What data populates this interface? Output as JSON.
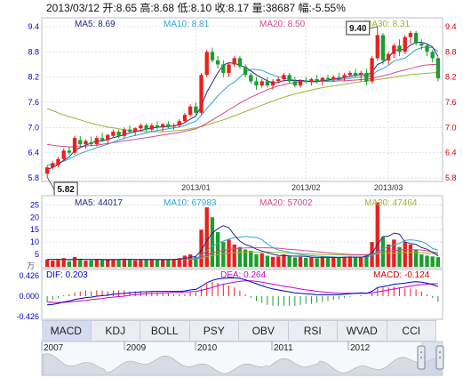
{
  "header": {
    "text": "2013/03/12 开:8.65 高:8.68 低:8.10 收:8.17 量:38687 幅:-5.55%"
  },
  "colors": {
    "up": "#e8211c",
    "down": "#1a9e2c",
    "ma5": "#1f2a8c",
    "ma10": "#2aa7d4",
    "ma20": "#d24a92",
    "ma30": "#9ab52e",
    "axis_left": "#0000cc",
    "axis_right": "#cc0000",
    "grid": "#e0e0e0"
  },
  "chart_data": [
    {
      "type": "candlestick",
      "name": "price",
      "ma_legend": [
        {
          "label": "MA5: 8.69",
          "color": "#1f2a8c"
        },
        {
          "label": "MA10: 8.81",
          "color": "#2aa7d4"
        },
        {
          "label": "MA20: 8.50",
          "color": "#d24a92"
        },
        {
          "label": "MA30: 8.31",
          "color": "#9ab52e"
        }
      ],
      "y_ticks": [
        "9.4",
        "8.8",
        "8.2",
        "7.6",
        "7.0",
        "6.4",
        "5.8"
      ],
      "ylim": [
        5.8,
        9.4
      ],
      "x_ticks": [
        {
          "label": "2013/01",
          "index": 27
        },
        {
          "label": "2013/02",
          "index": 47
        },
        {
          "label": "2013/03",
          "index": 62
        }
      ],
      "annotations": [
        {
          "label": "9.40",
          "kind": "high"
        },
        {
          "label": "5.82",
          "kind": "low"
        }
      ],
      "ohlc": [
        [
          5.9,
          6.1,
          5.82,
          6.05
        ],
        [
          6.05,
          6.2,
          6.0,
          6.15
        ],
        [
          6.1,
          6.3,
          6.05,
          6.25
        ],
        [
          6.25,
          6.5,
          6.2,
          6.45
        ],
        [
          6.45,
          6.55,
          6.35,
          6.4
        ],
        [
          6.4,
          6.8,
          6.35,
          6.75
        ],
        [
          6.7,
          6.8,
          6.55,
          6.6
        ],
        [
          6.6,
          6.72,
          6.5,
          6.68
        ],
        [
          6.65,
          6.78,
          6.55,
          6.6
        ],
        [
          6.6,
          6.8,
          6.55,
          6.75
        ],
        [
          6.75,
          6.88,
          6.65,
          6.7
        ],
        [
          6.7,
          6.85,
          6.6,
          6.82
        ],
        [
          6.8,
          6.95,
          6.75,
          6.9
        ],
        [
          6.9,
          6.95,
          6.75,
          6.8
        ],
        [
          6.8,
          7.0,
          6.75,
          6.95
        ],
        [
          6.95,
          7.05,
          6.85,
          6.9
        ],
        [
          6.9,
          7.0,
          6.8,
          6.98
        ],
        [
          6.98,
          7.1,
          6.9,
          7.05
        ],
        [
          7.05,
          7.1,
          6.9,
          6.95
        ],
        [
          6.95,
          7.1,
          6.9,
          7.05
        ],
        [
          7.05,
          7.15,
          6.95,
          7.0
        ],
        [
          7.0,
          7.1,
          6.9,
          7.08
        ],
        [
          7.08,
          7.15,
          6.98,
          7.02
        ],
        [
          7.02,
          7.1,
          6.95,
          7.05
        ],
        [
          7.05,
          7.2,
          7.0,
          7.15
        ],
        [
          7.15,
          7.35,
          7.1,
          7.3
        ],
        [
          7.3,
          7.55,
          7.25,
          7.5
        ],
        [
          7.5,
          7.6,
          7.3,
          7.35
        ],
        [
          7.35,
          8.3,
          7.3,
          8.25
        ],
        [
          8.25,
          8.85,
          8.2,
          8.8
        ],
        [
          8.8,
          8.9,
          8.55,
          8.6
        ],
        [
          8.6,
          8.7,
          8.4,
          8.5
        ],
        [
          8.5,
          8.6,
          8.2,
          8.3
        ],
        [
          8.3,
          8.55,
          8.2,
          8.5
        ],
        [
          8.5,
          8.7,
          8.45,
          8.65
        ],
        [
          8.65,
          8.7,
          8.4,
          8.45
        ],
        [
          8.45,
          8.5,
          8.2,
          8.25
        ],
        [
          8.25,
          8.3,
          8.05,
          8.1
        ],
        [
          8.1,
          8.2,
          7.9,
          8.0
        ],
        [
          8.0,
          8.15,
          7.95,
          8.1
        ],
        [
          8.1,
          8.2,
          7.95,
          8.0
        ],
        [
          8.0,
          8.15,
          7.9,
          8.1
        ],
        [
          8.1,
          8.2,
          8.05,
          8.15
        ],
        [
          8.15,
          8.3,
          8.1,
          8.25
        ],
        [
          8.25,
          8.3,
          8.05,
          8.1
        ],
        [
          8.1,
          8.2,
          7.95,
          8.0
        ],
        [
          8.0,
          8.15,
          7.95,
          8.12
        ],
        [
          8.12,
          8.2,
          8.05,
          8.08
        ],
        [
          8.08,
          8.18,
          8.0,
          8.15
        ],
        [
          8.15,
          8.25,
          8.05,
          8.1
        ],
        [
          8.1,
          8.2,
          8.0,
          8.18
        ],
        [
          8.18,
          8.25,
          8.1,
          8.15
        ],
        [
          8.15,
          8.25,
          8.08,
          8.2
        ],
        [
          8.2,
          8.3,
          8.12,
          8.18
        ],
        [
          8.18,
          8.3,
          8.1,
          8.25
        ],
        [
          8.25,
          8.35,
          8.2,
          8.3
        ],
        [
          8.3,
          8.4,
          8.2,
          8.25
        ],
        [
          8.25,
          8.35,
          8.1,
          8.3
        ],
        [
          8.3,
          8.4,
          8.0,
          8.1
        ],
        [
          8.1,
          8.7,
          8.05,
          8.65
        ],
        [
          8.65,
          9.4,
          8.6,
          9.2
        ],
        [
          9.2,
          9.25,
          8.5,
          8.6
        ],
        [
          8.6,
          8.8,
          8.5,
          8.75
        ],
        [
          8.75,
          9.0,
          8.65,
          8.95
        ],
        [
          8.95,
          9.1,
          8.7,
          8.8
        ],
        [
          8.8,
          9.2,
          8.75,
          9.15
        ],
        [
          9.15,
          9.3,
          9.0,
          9.25
        ],
        [
          9.25,
          9.3,
          8.95,
          9.0
        ],
        [
          9.0,
          9.1,
          8.85,
          8.95
        ],
        [
          8.95,
          9.0,
          8.7,
          8.8
        ],
        [
          8.8,
          8.85,
          8.55,
          8.65
        ],
        [
          8.65,
          8.68,
          8.1,
          8.17
        ]
      ],
      "ma5": [
        6.0,
        6.05,
        6.12,
        6.22,
        6.3,
        6.45,
        6.52,
        6.58,
        6.63,
        6.68,
        6.68,
        6.71,
        6.76,
        6.79,
        6.83,
        6.87,
        6.9,
        6.93,
        6.96,
        6.99,
        7.0,
        7.02,
        7.02,
        7.04,
        7.06,
        7.12,
        7.2,
        7.27,
        7.51,
        7.84,
        8.07,
        8.3,
        8.49,
        8.54,
        8.53,
        8.48,
        8.43,
        8.35,
        8.25,
        8.18,
        8.11,
        8.06,
        8.07,
        8.12,
        8.12,
        8.12,
        8.12,
        8.11,
        8.09,
        8.09,
        8.12,
        8.13,
        8.16,
        8.16,
        8.19,
        8.22,
        8.24,
        8.26,
        8.24,
        8.32,
        8.5,
        8.56,
        8.66,
        8.83,
        8.86,
        8.85,
        8.96,
        9.03,
        9.03,
        8.99,
        8.92,
        8.69
      ],
      "ma10": [
        6.1,
        6.12,
        6.15,
        6.2,
        6.25,
        6.32,
        6.38,
        6.43,
        6.47,
        6.52,
        6.56,
        6.6,
        6.65,
        6.7,
        6.74,
        6.78,
        6.81,
        6.84,
        6.87,
        6.9,
        6.93,
        6.95,
        6.97,
        6.99,
        7.01,
        7.05,
        7.1,
        7.15,
        7.28,
        7.45,
        7.6,
        7.75,
        7.88,
        8.0,
        8.08,
        8.2,
        8.32,
        8.39,
        8.38,
        8.36,
        8.3,
        8.25,
        8.21,
        8.18,
        8.15,
        8.12,
        8.1,
        8.1,
        8.1,
        8.1,
        8.11,
        8.12,
        8.13,
        8.14,
        8.15,
        8.17,
        8.19,
        8.21,
        8.2,
        8.25,
        8.35,
        8.4,
        8.48,
        8.58,
        8.62,
        8.65,
        8.75,
        8.85,
        8.9,
        8.92,
        8.9,
        8.81
      ],
      "ma20": [
        6.6,
        6.58,
        6.56,
        6.55,
        6.54,
        6.54,
        6.55,
        6.56,
        6.57,
        6.58,
        6.6,
        6.62,
        6.64,
        6.66,
        6.68,
        6.7,
        6.72,
        6.74,
        6.76,
        6.78,
        6.8,
        6.82,
        6.84,
        6.86,
        6.88,
        6.91,
        6.94,
        6.97,
        7.03,
        7.1,
        7.18,
        7.26,
        7.34,
        7.42,
        7.5,
        7.58,
        7.65,
        7.72,
        7.78,
        7.84,
        7.9,
        7.95,
        7.99,
        8.02,
        8.05,
        8.07,
        8.09,
        8.1,
        8.1,
        8.1,
        8.1,
        8.1,
        8.1,
        8.11,
        8.11,
        8.12,
        8.13,
        8.14,
        8.15,
        8.17,
        8.2,
        8.23,
        8.26,
        8.3,
        8.34,
        8.37,
        8.4,
        8.44,
        8.47,
        8.49,
        8.5,
        8.5
      ],
      "ma30": [
        7.45,
        7.4,
        7.35,
        7.3,
        7.26,
        7.22,
        7.18,
        7.14,
        7.1,
        7.07,
        7.04,
        7.01,
        6.99,
        6.97,
        6.95,
        6.93,
        6.92,
        6.91,
        6.9,
        6.9,
        6.9,
        6.9,
        6.91,
        6.92,
        6.93,
        6.95,
        6.97,
        6.99,
        7.02,
        7.06,
        7.1,
        7.14,
        7.18,
        7.23,
        7.28,
        7.33,
        7.38,
        7.43,
        7.48,
        7.53,
        7.58,
        7.63,
        7.68,
        7.72,
        7.76,
        7.8,
        7.83,
        7.86,
        7.89,
        7.92,
        7.95,
        7.97,
        7.99,
        8.01,
        8.03,
        8.05,
        8.07,
        8.09,
        8.1,
        8.12,
        8.14,
        8.16,
        8.18,
        8.2,
        8.22,
        8.24,
        8.26,
        8.27,
        8.28,
        8.29,
        8.3,
        8.31
      ]
    },
    {
      "type": "bar",
      "name": "volume",
      "ma_legend": [
        {
          "label": "MA5: 44017",
          "color": "#1f2a8c"
        },
        {
          "label": "MA10: 67983",
          "color": "#2aa7d4"
        },
        {
          "label": "MA20: 57002",
          "color": "#d24a92"
        },
        {
          "label": "MA30: 47464",
          "color": "#9ab52e"
        }
      ],
      "y_ticks": [
        "25",
        "20",
        "15",
        "10",
        "5"
      ],
      "unit_label": "万",
      "ylim": [
        0,
        28
      ],
      "values": [
        3,
        2.5,
        2.8,
        3.5,
        2.2,
        4,
        3,
        2.5,
        2.6,
        3.2,
        2.8,
        2.9,
        3.1,
        2.7,
        3.3,
        2.9,
        2.6,
        3,
        2.8,
        3.1,
        2.7,
        3,
        2.9,
        3.2,
        3.5,
        4.5,
        5,
        4,
        15,
        24,
        20,
        14,
        10,
        11,
        9,
        8,
        7,
        6.5,
        5,
        5.5,
        4.5,
        4,
        4.2,
        5,
        4.3,
        3.8,
        4,
        3.6,
        3.9,
        3.5,
        4.1,
        3.7,
        3.9,
        3.6,
        4,
        4.2,
        3.8,
        4.1,
        5,
        10,
        26,
        12,
        9,
        11,
        8,
        10,
        9,
        7,
        5,
        4.5,
        4.2,
        3.9
      ],
      "ma5": [
        3,
        3,
        3,
        3,
        2.8,
        3,
        3.1,
        3,
        2.9,
        3,
        2.9,
        2.8,
        2.9,
        2.9,
        3,
        3,
        2.9,
        2.9,
        2.9,
        3,
        2.9,
        2.9,
        2.9,
        3,
        3.1,
        3.4,
        3.8,
        4.2,
        6.6,
        10.5,
        13.6,
        15.4,
        16.6,
        15.8,
        12.8,
        10.4,
        9,
        8.3,
        7.1,
        6.4,
        5.7,
        5.1,
        4.6,
        4.6,
        4.4,
        4.3,
        4.3,
        4.2,
        3.9,
        3.8,
        3.8,
        3.8,
        3.8,
        3.7,
        3.9,
        3.9,
        3.9,
        3.9,
        4.2,
        5.4,
        9,
        12.2,
        12.4,
        13.6,
        13.2,
        10,
        9.4,
        9,
        7.8,
        7.1,
        5.9,
        4.4
      ],
      "ma10": [
        3,
        3,
        3,
        3,
        3,
        3,
        3,
        3,
        3,
        3,
        3,
        3,
        3,
        3,
        3,
        3,
        3,
        3,
        3,
        3,
        3,
        3,
        3,
        3,
        3,
        3,
        3.2,
        3.4,
        4.6,
        6.5,
        8.3,
        9.4,
        10.4,
        11.2,
        11.7,
        12,
        12.3,
        12,
        11.9,
        11,
        9.2,
        7.8,
        6.8,
        6.4,
        5.8,
        5.4,
        5,
        4.7,
        4.5,
        4.3,
        4.2,
        4.1,
        4,
        3.9,
        3.9,
        3.9,
        3.9,
        3.9,
        4,
        4.4,
        6,
        7.5,
        8,
        8.8,
        9.5,
        10.7,
        10.9,
        10.7,
        10.2,
        9.2,
        7.4,
        6.8
      ],
      "ma20": [
        3,
        3,
        3,
        3,
        3,
        3,
        3,
        3,
        3,
        3,
        3,
        3,
        3,
        3,
        3,
        3,
        3,
        3,
        3,
        3,
        3,
        3,
        3,
        3,
        3,
        3,
        3.1,
        3.2,
        3.8,
        4.8,
        5.6,
        6.2,
        6.6,
        7,
        7.3,
        7.5,
        7.6,
        7.7,
        7.7,
        7.7,
        7.7,
        7.6,
        7.5,
        7.3,
        7.1,
        6.9,
        6.7,
        6.5,
        6.3,
        6.1,
        5.9,
        5.7,
        5.5,
        5.3,
        5.1,
        5,
        4.9,
        4.9,
        5,
        5.2,
        5.8,
        6.2,
        6.3,
        6.5,
        6.7,
        6.9,
        6.9,
        6.9,
        6.8,
        6.5,
        6,
        5.7
      ],
      "ma30": [
        3,
        3,
        3,
        3,
        3,
        3,
        3,
        3,
        3,
        3,
        3,
        3,
        3,
        3,
        3,
        3,
        3,
        3,
        3,
        3,
        3,
        3,
        3,
        3,
        3,
        3,
        3,
        3.1,
        3.5,
        4.1,
        4.6,
        5,
        5.3,
        5.5,
        5.7,
        5.8,
        5.9,
        6,
        6,
        6,
        6,
        5.9,
        5.8,
        5.7,
        5.6,
        5.5,
        5.4,
        5.3,
        5.2,
        5.1,
        5,
        5,
        4.9,
        4.8,
        4.8,
        4.7,
        4.7,
        4.7,
        4.8,
        4.9,
        5.2,
        5.4,
        5.5,
        5.6,
        5.7,
        5.8,
        5.8,
        5.8,
        5.7,
        5.6,
        5.5,
        5.4
      ]
    },
    {
      "type": "macd",
      "name": "macd",
      "legend": [
        {
          "label": "DIF: 0.203",
          "color": "#0000cc"
        },
        {
          "label": "DEA: 0.264",
          "color": "#cc00cc"
        },
        {
          "label": "MACD: -0.124",
          "color": "#cc0000"
        }
      ],
      "y_ticks": [
        "0.426",
        "0.000",
        "-0.426"
      ],
      "ylim": [
        -0.426,
        0.426
      ],
      "dif": [
        -0.18,
        -0.17,
        -0.15,
        -0.12,
        -0.1,
        -0.07,
        -0.05,
        -0.03,
        -0.02,
        0.0,
        0.01,
        0.02,
        0.04,
        0.05,
        0.06,
        0.07,
        0.08,
        0.09,
        0.09,
        0.1,
        0.1,
        0.1,
        0.1,
        0.1,
        0.1,
        0.11,
        0.13,
        0.14,
        0.2,
        0.28,
        0.33,
        0.36,
        0.37,
        0.38,
        0.38,
        0.37,
        0.34,
        0.3,
        0.26,
        0.22,
        0.18,
        0.15,
        0.13,
        0.11,
        0.09,
        0.07,
        0.06,
        0.05,
        0.04,
        0.03,
        0.03,
        0.03,
        0.03,
        0.03,
        0.04,
        0.05,
        0.06,
        0.07,
        0.06,
        0.1,
        0.18,
        0.2,
        0.22,
        0.25,
        0.26,
        0.27,
        0.29,
        0.3,
        0.29,
        0.27,
        0.24,
        0.2
      ],
      "dea": [
        -0.12,
        -0.13,
        -0.13,
        -0.13,
        -0.12,
        -0.11,
        -0.1,
        -0.09,
        -0.07,
        -0.06,
        -0.05,
        -0.03,
        -0.02,
        -0.01,
        0.0,
        0.02,
        0.03,
        0.04,
        0.05,
        0.06,
        0.06,
        0.07,
        0.07,
        0.08,
        0.08,
        0.09,
        0.09,
        0.1,
        0.12,
        0.15,
        0.18,
        0.22,
        0.25,
        0.27,
        0.29,
        0.31,
        0.32,
        0.32,
        0.31,
        0.29,
        0.27,
        0.25,
        0.23,
        0.21,
        0.19,
        0.17,
        0.15,
        0.13,
        0.12,
        0.1,
        0.09,
        0.08,
        0.07,
        0.06,
        0.06,
        0.06,
        0.06,
        0.06,
        0.06,
        0.07,
        0.09,
        0.11,
        0.13,
        0.15,
        0.17,
        0.19,
        0.21,
        0.23,
        0.24,
        0.25,
        0.26,
        0.26
      ]
    }
  ],
  "tabs": [
    "MACD",
    "KDJ",
    "BOLL",
    "PSY",
    "OBV",
    "RSI",
    "WVAD",
    "CCI"
  ],
  "active_tab": "MACD",
  "timeline": {
    "years": [
      "2007",
      "2009",
      "2010",
      "2011",
      "2012"
    ]
  }
}
